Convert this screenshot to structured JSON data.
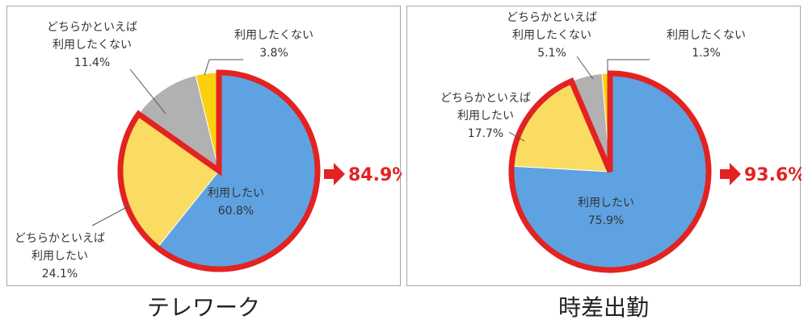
{
  "chart_data": [
    {
      "type": "pie",
      "caption": "テレワーク",
      "slices": [
        {
          "label_lines": [
            "利用したい"
          ],
          "value": 60.8,
          "value_text": "60.8%",
          "color": "#5fa2e1",
          "highlighted": true
        },
        {
          "label_lines": [
            "どちらかといえば",
            "利用したい"
          ],
          "value": 24.1,
          "value_text": "24.1%",
          "color": "#f9dc61",
          "highlighted": true
        },
        {
          "label_lines": [
            "どちらかといえば",
            "利用したくない"
          ],
          "value": 11.4,
          "value_text": "11.4%",
          "color": "#b1b1b1",
          "highlighted": false
        },
        {
          "label_lines": [
            "利用したくない"
          ],
          "value": 3.8,
          "value_text": "3.8%",
          "color": "#fbd00e",
          "highlighted": false
        }
      ],
      "highlight_total": "84.9%",
      "highlight_color": "#e32222"
    },
    {
      "type": "pie",
      "caption": "時差出勤",
      "slices": [
        {
          "label_lines": [
            "利用したい"
          ],
          "value": 75.9,
          "value_text": "75.9%",
          "color": "#5fa2e1",
          "highlighted": true
        },
        {
          "label_lines": [
            "どちらかといえば",
            "利用したい"
          ],
          "value": 17.7,
          "value_text": "17.7%",
          "color": "#f9dc61",
          "highlighted": true
        },
        {
          "label_lines": [
            "どちらかといえば",
            "利用したくない"
          ],
          "value": 5.1,
          "value_text": "5.1%",
          "color": "#b1b1b1",
          "highlighted": false
        },
        {
          "label_lines": [
            "利用したくない"
          ],
          "value": 1.3,
          "value_text": "1.3%",
          "color": "#fbd00e",
          "highlighted": false
        }
      ],
      "highlight_total": "93.6%",
      "highlight_color": "#e32222"
    }
  ]
}
